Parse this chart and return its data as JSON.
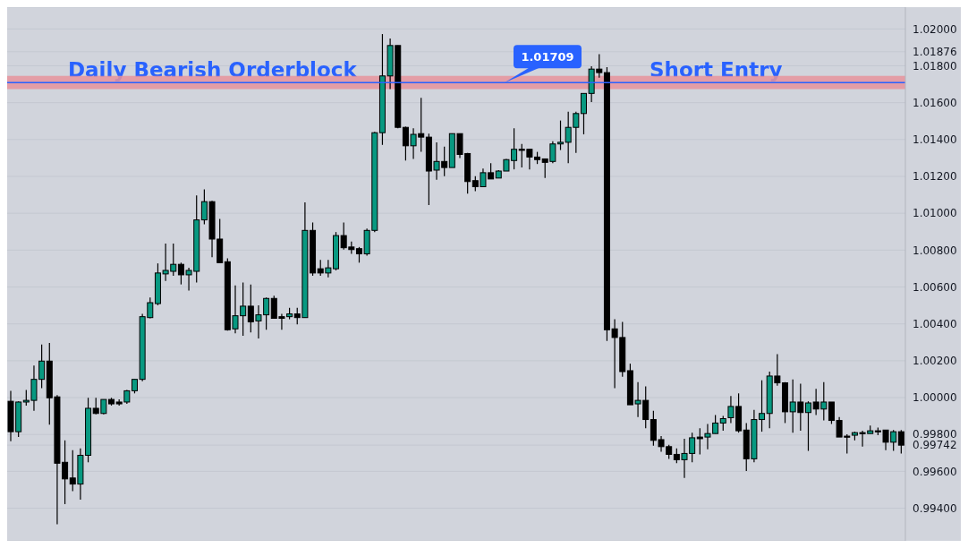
{
  "chart_data": {
    "type": "candlestick",
    "categories": [
      null,
      null,
      null,
      null,
      null,
      null,
      null,
      null,
      null,
      null,
      null,
      null,
      null,
      null,
      null,
      null,
      null,
      null,
      null,
      null,
      null,
      null,
      null,
      null,
      null,
      null,
      null,
      null,
      null,
      null,
      null,
      null,
      null,
      null,
      null,
      null,
      null,
      null,
      null,
      null,
      null,
      null,
      null,
      null,
      null,
      null,
      null,
      null,
      null,
      null,
      null,
      null,
      null,
      null,
      null,
      null,
      null,
      null,
      null,
      null,
      null,
      null,
      null,
      null,
      null,
      null,
      null,
      null,
      null,
      null,
      null,
      null,
      null,
      null,
      null,
      null,
      null,
      null,
      null,
      null,
      null,
      null,
      null,
      null,
      null,
      null,
      null,
      null,
      null,
      null,
      null,
      null,
      null,
      null,
      null,
      null,
      null,
      null,
      null,
      null,
      null,
      null,
      null,
      null,
      null,
      null,
      null,
      null,
      null,
      null,
      null,
      null,
      null,
      null,
      null,
      null
    ],
    "ohlc": [
      [
        0.9998,
        1.00037,
        0.99763,
        0.99815
      ],
      [
        0.99815,
        0.9998,
        0.99786,
        0.99976
      ],
      [
        0.99976,
        1.00042,
        0.99957,
        0.99985
      ],
      [
        0.99985,
        1.00174,
        0.99928,
        1.00099
      ],
      [
        1.00099,
        1.00288,
        1.00051,
        1.00198
      ],
      [
        1.00198,
        1.00297,
        0.99853,
        0.99999
      ],
      [
        1.00004,
        1.00013,
        0.99313,
        0.99644
      ],
      [
        0.99649,
        0.99768,
        0.99422,
        0.99559
      ],
      [
        0.99564,
        0.99715,
        0.99493,
        0.99531
      ],
      [
        0.99531,
        0.99725,
        0.99446,
        0.99687
      ],
      [
        0.99687,
        0.99999,
        0.99649,
        0.99942
      ],
      [
        0.99942,
        0.99999,
        0.99909,
        0.99914
      ],
      [
        0.99914,
        0.9999,
        0.99909,
        0.9999
      ],
      [
        0.9999,
        0.99999,
        0.99957,
        0.99966
      ],
      [
        0.99976,
        0.9999,
        0.99957,
        0.99966
      ],
      [
        0.99976,
        1.00042,
        0.99966,
        1.00037
      ],
      [
        1.00037,
        1.00099,
        1.00023,
        1.00099
      ],
      [
        1.00099,
        1.00454,
        1.00089,
        1.00439
      ],
      [
        1.00434,
        1.00543,
        1.0043,
        1.00515
      ],
      [
        1.0051,
        1.00728,
        1.00501,
        1.00676
      ],
      [
        1.00671,
        1.00836,
        1.00633,
        1.0069
      ],
      [
        1.00685,
        1.00836,
        1.00661,
        1.00723
      ],
      [
        1.00723,
        1.00732,
        1.00614,
        1.00666
      ],
      [
        1.00666,
        1.00704,
        1.00581,
        1.0069
      ],
      [
        1.00685,
        1.01097,
        1.00624,
        1.00964
      ],
      [
        1.00964,
        1.0113,
        1.0094,
        1.01063
      ],
      [
        1.01063,
        1.01068,
        1.00761,
        1.0086
      ],
      [
        1.0086,
        1.00969,
        1.00732,
        1.00732
      ],
      [
        1.00737,
        1.00756,
        1.00363,
        1.00368
      ],
      [
        1.00373,
        1.00609,
        1.00349,
        1.00444
      ],
      [
        1.00444,
        1.00624,
        1.00335,
        1.00496
      ],
      [
        1.00496,
        1.00614,
        1.00354,
        1.00411
      ],
      [
        1.00416,
        1.00501,
        1.00321,
        1.00449
      ],
      [
        1.00449,
        1.00543,
        1.00368,
        1.00538
      ],
      [
        1.00538,
        1.00553,
        1.0043,
        1.0043
      ],
      [
        1.00439,
        1.00454,
        1.00368,
        1.0043
      ],
      [
        1.00439,
        1.00487,
        1.00425,
        1.00454
      ],
      [
        1.00454,
        1.00487,
        1.00397,
        1.00434
      ],
      [
        1.00434,
        1.01059,
        1.00434,
        1.00907
      ],
      [
        1.00907,
        1.0095,
        1.00661,
        1.00676
      ],
      [
        1.00699,
        1.00747,
        1.00661,
        1.00676
      ],
      [
        1.00676,
        1.00747,
        1.00652,
        1.00704
      ],
      [
        1.00699,
        1.00898,
        1.0069,
        1.00879
      ],
      [
        1.00879,
        1.0095,
        1.00803,
        1.00813
      ],
      [
        1.00817,
        1.00846,
        1.0078,
        1.00803
      ],
      [
        1.00808,
        1.00817,
        1.00732,
        1.0078
      ],
      [
        1.0078,
        1.00917,
        1.0077,
        1.00907
      ],
      [
        1.00907,
        1.01442,
        1.00898,
        1.01437
      ],
      [
        1.01437,
        1.01972,
        1.01371,
        1.01745
      ],
      [
        1.01745,
        1.01948,
        1.01674,
        1.0191
      ],
      [
        1.0191,
        1.0191,
        1.01461,
        1.01466
      ],
      [
        1.01466,
        1.0147,
        1.01286,
        1.01366
      ],
      [
        1.01366,
        1.01461,
        1.01295,
        1.01428
      ],
      [
        1.01432,
        1.01626,
        1.01333,
        1.01413
      ],
      [
        1.01413,
        1.01432,
        1.01045,
        1.01229
      ],
      [
        1.01234,
        1.01385,
        1.01182,
        1.01281
      ],
      [
        1.01281,
        1.01361,
        1.01201,
        1.01248
      ],
      [
        1.01248,
        1.01432,
        1.01248,
        1.01432
      ],
      [
        1.01432,
        1.01432,
        1.013,
        1.01319
      ],
      [
        1.01324,
        1.01328,
        1.01106,
        1.01172
      ],
      [
        1.01177,
        1.01201,
        1.0112,
        1.01144
      ],
      [
        1.01144,
        1.01243,
        1.01144,
        1.0122
      ],
      [
        1.0122,
        1.01272,
        1.01186,
        1.01186
      ],
      [
        1.01191,
        1.01234,
        1.01191,
        1.01229
      ],
      [
        1.01229,
        1.01295,
        1.01229,
        1.01291
      ],
      [
        1.01286,
        1.01461,
        1.01238,
        1.01347
      ],
      [
        1.01347,
        1.01376,
        1.01248,
        1.01343
      ],
      [
        1.01347,
        1.01347,
        1.01238,
        1.01305
      ],
      [
        1.01305,
        1.01333,
        1.01267,
        1.01291
      ],
      [
        1.01295,
        1.01295,
        1.01191,
        1.01276
      ],
      [
        1.01281,
        1.0139,
        1.01272,
        1.01376
      ],
      [
        1.01376,
        1.01503,
        1.01343,
        1.01385
      ],
      [
        1.01385,
        1.01551,
        1.01272,
        1.01466
      ],
      [
        1.01466,
        1.01551,
        1.01328,
        1.01541
      ],
      [
        1.01541,
        1.0165,
        1.01428,
        1.0165
      ],
      [
        1.0165,
        1.01797,
        1.01603,
        1.01782
      ],
      [
        1.01782,
        1.01863,
        1.01735,
        1.01763
      ],
      [
        1.01763,
        1.01792,
        1.00307,
        1.00368
      ],
      [
        1.00373,
        1.00425,
        1.00051,
        1.00326
      ],
      [
        1.00326,
        1.00411,
        1.00113,
        1.00141
      ],
      [
        1.00146,
        1.00184,
        0.99961,
        0.99961
      ],
      [
        0.99966,
        1.00084,
        0.99895,
        0.99985
      ],
      [
        0.99985,
        1.00061,
        0.99834,
        0.99881
      ],
      [
        0.99881,
        0.99928,
        0.99739,
        0.99768
      ],
      [
        0.99772,
        0.99791,
        0.99706,
        0.99734
      ],
      [
        0.99734,
        0.99744,
        0.99668,
        0.99692
      ],
      [
        0.99692,
        0.99725,
        0.99644,
        0.99663
      ],
      [
        0.99663,
        0.99777,
        0.99564,
        0.99697
      ],
      [
        0.99697,
        0.9981,
        0.99649,
        0.99782
      ],
      [
        0.99786,
        0.99834,
        0.99692,
        0.99777
      ],
      [
        0.99786,
        0.99857,
        0.9972,
        0.99805
      ],
      [
        0.99805,
        0.99905,
        0.99805,
        0.99862
      ],
      [
        0.99862,
        0.999,
        0.9982,
        0.99886
      ],
      [
        0.99891,
        1.00009,
        0.99862,
        0.99952
      ],
      [
        0.99952,
        1.00023,
        0.9981,
        0.9982
      ],
      [
        0.99824,
        0.99862,
        0.99602,
        0.99668
      ],
      [
        0.99668,
        0.99933,
        0.99649,
        0.99881
      ],
      [
        0.99881,
        1.00094,
        0.99815,
        0.99914
      ],
      [
        0.99914,
        1.00141,
        0.99834,
        1.00117
      ],
      [
        1.00117,
        1.00236,
        1.00065,
        1.0008
      ],
      [
        1.0008,
        1.00084,
        0.99862,
        0.99923
      ],
      [
        0.99923,
        1.00099,
        0.9981,
        0.99976
      ],
      [
        0.99976,
        1.00075,
        0.9982,
        0.99919
      ],
      [
        0.99919,
        0.9998,
        0.99711,
        0.99971
      ],
      [
        0.99976,
        1.00047,
        0.99905,
        0.99938
      ],
      [
        0.99938,
        1.00084,
        0.99876,
        0.99976
      ],
      [
        0.99976,
        0.99976,
        0.99857,
        0.99876
      ],
      [
        0.99876,
        0.99895,
        0.99786,
        0.99786
      ],
      [
        0.99791,
        0.99801,
        0.99697,
        0.99786
      ],
      [
        0.99796,
        0.99815,
        0.99768,
        0.9981
      ],
      [
        0.9981,
        0.9982,
        0.99734,
        0.99805
      ],
      [
        0.99805,
        0.99848,
        0.99805,
        0.9982
      ],
      [
        0.9982,
        0.99838,
        0.99796,
        0.99815
      ],
      [
        0.99824,
        0.99824,
        0.99715,
        0.99758
      ],
      [
        0.99758,
        0.99824,
        0.99711,
        0.99815
      ],
      [
        0.99815,
        0.99824,
        0.99697,
        0.99742
      ]
    ],
    "colors": [
      "#000000",
      "#089981",
      "#089981",
      "#089981",
      "#089981",
      "#000000",
      "#000000",
      "#000000",
      "#000000",
      "#089981",
      "#089981",
      "#000000",
      "#089981",
      "#000000",
      "#000000",
      "#089981",
      "#089981",
      "#089981",
      "#089981",
      "#089981",
      "#089981",
      "#089981",
      "#000000",
      "#089981",
      "#089981",
      "#089981",
      "#000000",
      "#000000",
      "#000000",
      "#089981",
      "#089981",
      "#000000",
      "#089981",
      "#089981",
      "#000000",
      "#000000",
      "#089981",
      "#000000",
      "#089981",
      "#000000",
      "#000000",
      "#089981",
      "#089981",
      "#000000",
      "#000000",
      "#000000",
      "#089981",
      "#089981",
      "#089981",
      "#089981",
      "#000000",
      "#000000",
      "#089981",
      "#000000",
      "#000000",
      "#089981",
      "#000000",
      "#089981",
      "#000000",
      "#000000",
      "#000000",
      "#089981",
      "#000000",
      "#089981",
      "#089981",
      "#089981",
      "#000000",
      "#000000",
      "#000000",
      "#000000",
      "#089981",
      "#089981",
      "#089981",
      "#089981",
      "#089981",
      "#089981",
      "#000000",
      "#000000",
      "#000000",
      "#000000",
      "#000000",
      "#089981",
      "#000000",
      "#000000",
      "#000000",
      "#000000",
      "#000000",
      "#089981",
      "#089981",
      "#000000",
      "#089981",
      "#089981",
      "#089981",
      "#089981",
      "#000000",
      "#000000",
      "#089981",
      "#089981",
      "#089981",
      "#000000",
      "#000000",
      "#089981",
      "#000000",
      "#089981",
      "#000000",
      "#089981",
      "#000000",
      "#000000",
      "#000000",
      "#089981",
      "#000000",
      "#089981",
      "#000000",
      "#000000",
      "#089981",
      "#000000"
    ],
    "ylim": [
      0.99223,
      1.02118
    ],
    "yticks": [
      {
        "value": 0.994,
        "label": "0.99400"
      },
      {
        "value": 0.996,
        "label": "0.99600"
      },
      {
        "value": 0.998,
        "label": "0.99800"
      },
      {
        "value": 1.0,
        "label": "1.00000"
      },
      {
        "value": 1.002,
        "label": "1.00200"
      },
      {
        "value": 1.004,
        "label": "1.00400"
      },
      {
        "value": 1.006,
        "label": "1.00600"
      },
      {
        "value": 1.008,
        "label": "1.00800"
      },
      {
        "value": 1.01,
        "label": "1.01000"
      },
      {
        "value": 1.012,
        "label": "1.01200"
      },
      {
        "value": 1.014,
        "label": "1.01400"
      },
      {
        "value": 1.016,
        "label": "1.01600"
      },
      {
        "value": 1.018,
        "label": "1.01800"
      },
      {
        "value": 1.02,
        "label": "1.02000"
      },
      {
        "value": 0.99742,
        "label": "0.99742"
      },
      {
        "value": 1.01876,
        "label": "1.01876"
      }
    ],
    "grid": "y",
    "ref_lines": [
      {
        "axis": "y",
        "value": 1.01709,
        "label": "1.01709",
        "color": "#2962ff"
      }
    ],
    "bands": [
      {
        "axis": "y",
        "from": 1.01674,
        "to": 1.01745,
        "color": "#e8939c"
      }
    ],
    "annotations": [
      "Daily Bearish Orderblock",
      "Short Entry"
    ]
  }
}
